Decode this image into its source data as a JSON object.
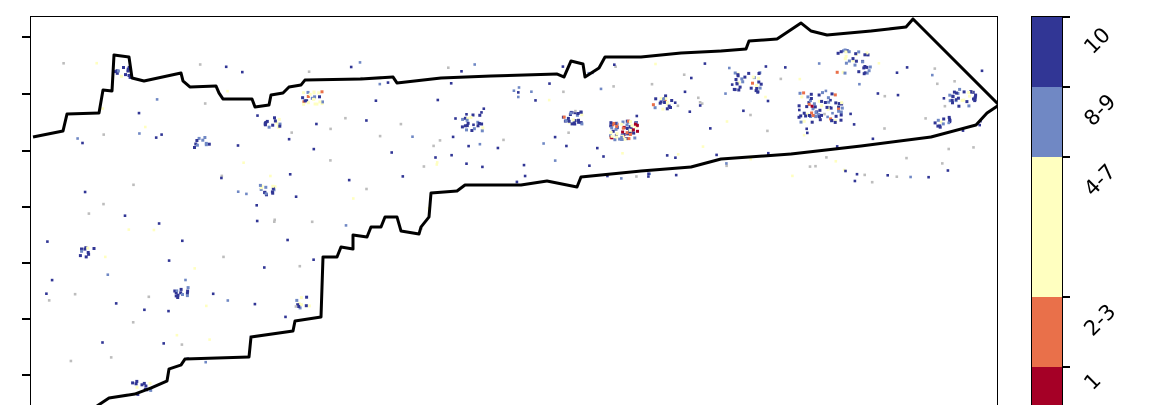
{
  "legend": {
    "bins": [
      {
        "label": "10",
        "color": "#313695"
      },
      {
        "label": "8-9",
        "color": "#7088c4"
      },
      {
        "label": "4-7",
        "color": "#ffffc0"
      },
      {
        "label": "2-3",
        "color": "#e9704a"
      },
      {
        "label": "1",
        "color": "#a50026"
      }
    ]
  },
  "colors": {
    "boundary": "#000000",
    "background": "#ffffff",
    "unclassified_cell": "#bdbdbd"
  }
}
